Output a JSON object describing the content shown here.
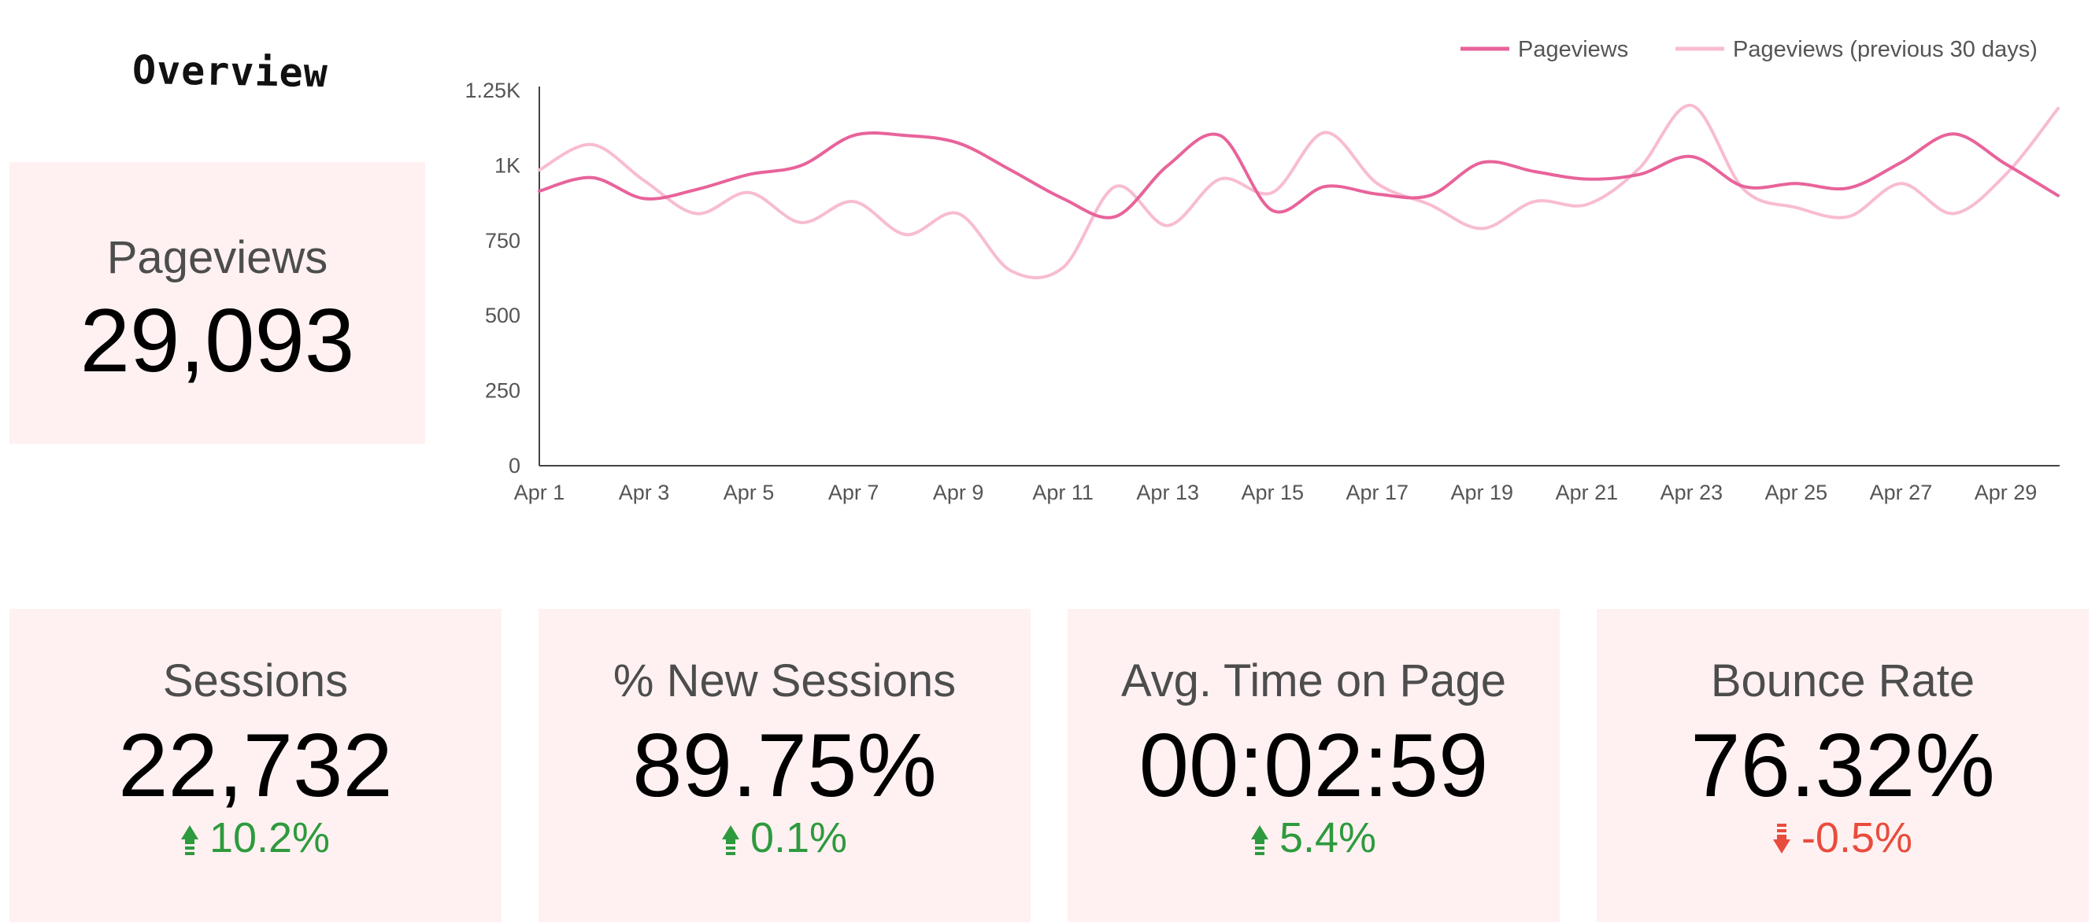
{
  "header": {
    "title": "Overview"
  },
  "pageviews_card": {
    "label": "Pageviews",
    "value": "29,093"
  },
  "kpis": [
    {
      "label": "Sessions",
      "value": "22,732",
      "delta": "10.2%",
      "direction": "up"
    },
    {
      "label": "% New Sessions",
      "value": "89.75%",
      "delta": "0.1%",
      "direction": "up"
    },
    {
      "label": "Avg. Time on Page",
      "value": "00:02:59",
      "delta": "5.4%",
      "direction": "up"
    },
    {
      "label": "Bounce Rate",
      "value": "76.32%",
      "delta": "-0.5%",
      "direction": "down"
    }
  ],
  "colors": {
    "card_bg": "#fff1f1",
    "current_line": "#e8639a",
    "previous_line": "#f8bcd2",
    "positive": "#2e9a3e",
    "negative": "#e84c3d"
  },
  "chart_data": {
    "type": "line",
    "x": [
      "Apr 1",
      "Apr 2",
      "Apr 3",
      "Apr 4",
      "Apr 5",
      "Apr 6",
      "Apr 7",
      "Apr 8",
      "Apr 9",
      "Apr 10",
      "Apr 11",
      "Apr 12",
      "Apr 13",
      "Apr 14",
      "Apr 15",
      "Apr 16",
      "Apr 17",
      "Apr 18",
      "Apr 19",
      "Apr 20",
      "Apr 21",
      "Apr 22",
      "Apr 23",
      "Apr 24",
      "Apr 25",
      "Apr 26",
      "Apr 27",
      "Apr 28",
      "Apr 29",
      "Apr 30"
    ],
    "x_tick_labels": [
      "Apr 1",
      "Apr 3",
      "Apr 5",
      "Apr 7",
      "Apr 9",
      "Apr 11",
      "Apr 13",
      "Apr 15",
      "Apr 17",
      "Apr 19",
      "Apr 21",
      "Apr 23",
      "Apr 25",
      "Apr 27",
      "Apr 29"
    ],
    "series": [
      {
        "name": "Pageviews",
        "values": [
          915,
          960,
          890,
          920,
          970,
          1000,
          1100,
          1100,
          1075,
          985,
          890,
          830,
          1000,
          1100,
          850,
          930,
          905,
          900,
          1010,
          980,
          955,
          970,
          1030,
          930,
          940,
          925,
          1010,
          1105,
          1005,
          900
        ]
      },
      {
        "name": "Pageviews (previous 30 days)",
        "values": [
          985,
          1070,
          950,
          840,
          910,
          810,
          880,
          770,
          840,
          650,
          660,
          930,
          800,
          955,
          910,
          1110,
          940,
          870,
          790,
          880,
          870,
          990,
          1200,
          920,
          860,
          830,
          940,
          840,
          970,
          1190
        ]
      }
    ],
    "y_ticks": [
      0,
      250,
      500,
      750,
      1000,
      1250
    ],
    "y_tick_labels": [
      "0",
      "250",
      "500",
      "750",
      "1K",
      "1.25K"
    ],
    "ylim": [
      0,
      1250
    ],
    "grid": false,
    "legend_position": "top-right"
  }
}
